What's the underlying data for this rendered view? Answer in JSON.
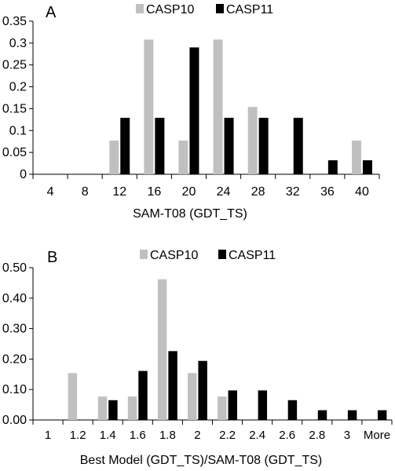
{
  "colors": {
    "series_a": "#c0c0c0",
    "series_b": "#000000"
  },
  "chart_data": [
    {
      "type": "bar",
      "panel_label": "A",
      "categories": [
        "4",
        "8",
        "12",
        "16",
        "20",
        "24",
        "28",
        "32",
        "36",
        "40"
      ],
      "series": [
        {
          "name": "CASP10",
          "values": [
            0,
            0,
            0.077,
            0.308,
            0.077,
            0.308,
            0.154,
            0,
            0,
            0.077
          ]
        },
        {
          "name": "CASP11",
          "values": [
            0,
            0,
            0.129,
            0.129,
            0.29,
            0.129,
            0.129,
            0.129,
            0.032,
            0.032
          ]
        }
      ],
      "xlabel": "SAM-T08 (GDT_TS)",
      "ylabel": "",
      "ylim": [
        0,
        0.35
      ],
      "yticks": [
        "0",
        "0.05",
        "0.1",
        "0.15",
        "0.2",
        "0.25",
        "0.3",
        "0.35"
      ],
      "legend": "top-center",
      "grid": false
    },
    {
      "type": "bar",
      "panel_label": "B",
      "categories": [
        "1",
        "1.2",
        "1.4",
        "1.6",
        "1.8",
        "2",
        "2.2",
        "2.4",
        "2.6",
        "2.8",
        "3",
        "More"
      ],
      "series": [
        {
          "name": "CASP10",
          "values": [
            0,
            0.154,
            0.077,
            0.077,
            0.462,
            0.154,
            0.077,
            0,
            0,
            0,
            0,
            0
          ]
        },
        {
          "name": "CASP11",
          "values": [
            0,
            0,
            0.065,
            0.161,
            0.226,
            0.194,
            0.097,
            0.097,
            0.065,
            0.032,
            0.032,
            0.032
          ]
        }
      ],
      "xlabel": "Best Model (GDT_TS)/SAM-T08 (GDT_TS)",
      "ylabel": "",
      "ylim": [
        0,
        0.5
      ],
      "yticks": [
        "0.00",
        "0.10",
        "0.20",
        "0.30",
        "0.40",
        "0.50"
      ],
      "legend": "top-center",
      "grid": false
    }
  ]
}
